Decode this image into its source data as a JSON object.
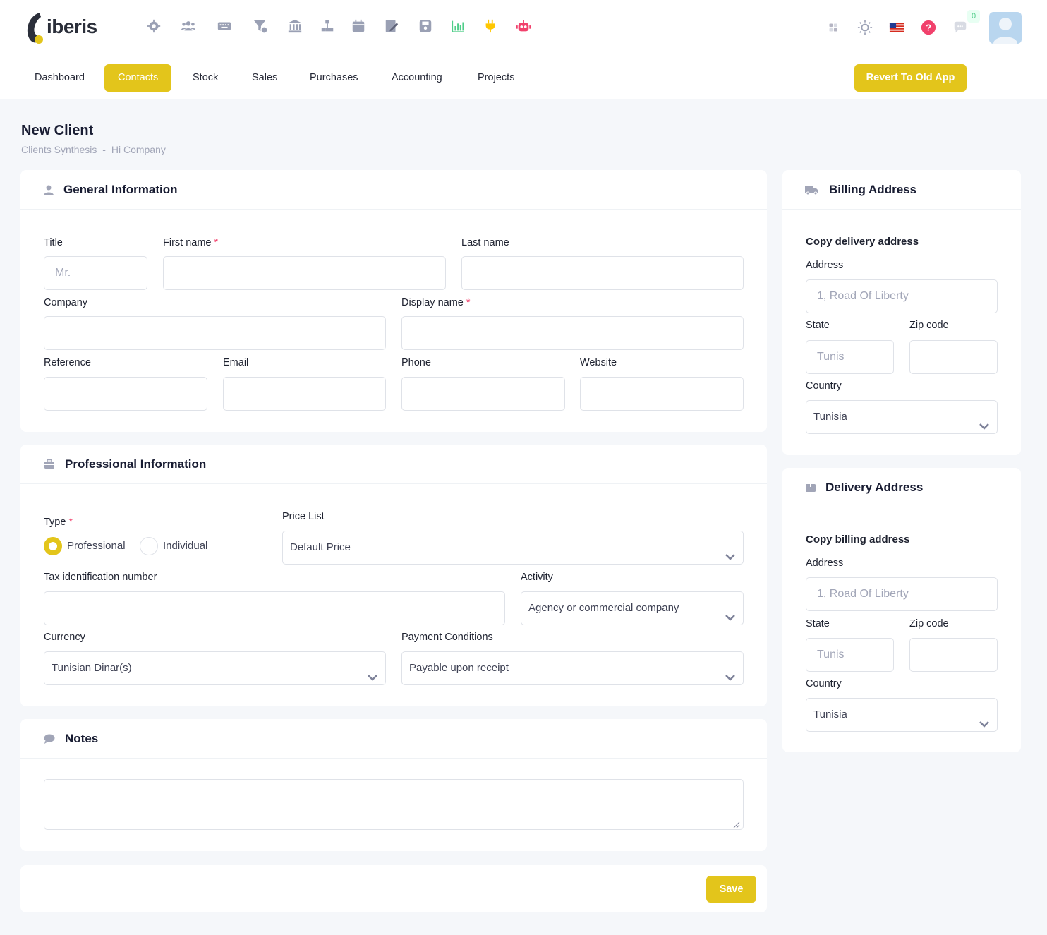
{
  "app": {
    "name": "iberis"
  },
  "top_icons": [
    {
      "name": "gear-icon"
    },
    {
      "name": "users-icon"
    },
    {
      "name": "keyboard-icon"
    },
    {
      "name": "filter-money-icon"
    },
    {
      "name": "bank-icon"
    },
    {
      "name": "hierarchy-icon"
    },
    {
      "name": "calendar-icon"
    },
    {
      "name": "edit-icon"
    },
    {
      "name": "save-icon"
    },
    {
      "name": "chart-icon"
    },
    {
      "name": "plug-icon"
    },
    {
      "name": "robot-icon"
    }
  ],
  "header_right": {
    "notifications_count": "0"
  },
  "nav": {
    "items": [
      "Dashboard",
      "Contacts",
      "Stock",
      "Sales",
      "Purchases",
      "Accounting",
      "Projects"
    ],
    "active": "Contacts",
    "revert_label": "Revert To Old App"
  },
  "page": {
    "title": "New Client",
    "breadcrumb": [
      "Clients Synthesis",
      "-",
      "Hi Company"
    ]
  },
  "general": {
    "title": "General Information",
    "title_label": "Title",
    "title_placeholder": "Mr.",
    "first_name_label": "First name",
    "last_name_label": "Last name",
    "company_label": "Company",
    "display_name_label": "Display name",
    "reference_label": "Reference",
    "email_label": "Email",
    "phone_label": "Phone",
    "website_label": "Website",
    "required_mark": "*"
  },
  "professional": {
    "title": "Professional Information",
    "type_label": "Type",
    "type_options": [
      "Professional",
      "Individual"
    ],
    "type_selected": "Professional",
    "price_list_label": "Price List",
    "price_list_value": "Default Price",
    "tax_label": "Tax identification number",
    "activity_label": "Activity",
    "activity_value": "Agency or commercial company",
    "currency_label": "Currency",
    "currency_value": "Tunisian Dinar(s)",
    "payment_label": "Payment Conditions",
    "payment_value": "Payable upon receipt"
  },
  "notes": {
    "title": "Notes"
  },
  "billing": {
    "title": "Billing Address",
    "copy_label": "Copy delivery address",
    "address_label": "Address",
    "address_placeholder": "1, Road Of Liberty",
    "state_label": "State",
    "state_placeholder": "Tunis",
    "zip_label": "Zip code",
    "country_label": "Country",
    "country_value": "Tunisia"
  },
  "delivery": {
    "title": "Delivery Address",
    "copy_label": "Copy billing address",
    "address_label": "Address",
    "address_placeholder": "1, Road Of Liberty",
    "state_label": "State",
    "state_placeholder": "Tunis",
    "zip_label": "Zip code",
    "country_label": "Country",
    "country_value": "Tunisia"
  },
  "actions": {
    "save_label": "Save"
  },
  "colors": {
    "accent": "#e3c51b",
    "required": "#f1416c",
    "background": "#f5f7fa"
  }
}
